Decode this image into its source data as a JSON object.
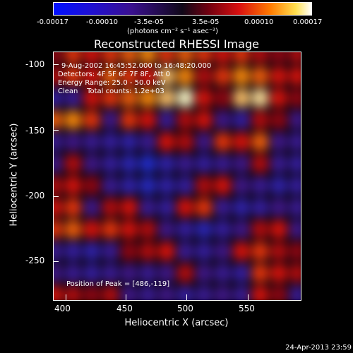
{
  "colorbar": {
    "ticks": [
      "-0.00017",
      "-0.00010",
      "-3.5e-05",
      "3.5e-05",
      "0.00010",
      "0.00017"
    ],
    "units": "(photons cm⁻² s⁻¹ asec⁻²)"
  },
  "title": "Reconstructed RHESSI Image",
  "annotations": {
    "time": "9-Aug-2002 16:45:52.000 to 16:48:20.000",
    "detectors": "Detectors: 4F 5F 6F 7F 8F, Att 0",
    "energy": "Energy Range: 25.0 - 50.0 keV",
    "clean": "Clean    Total counts: 1.2e+03",
    "peak": "Position of Peak = [486,-119]"
  },
  "footer": "24-Apr-2013 23:59",
  "chart_data": {
    "type": "heatmap",
    "title": "Reconstructed RHESSI Image",
    "xlabel": "Heliocentric X (arcsec)",
    "ylabel": "Heliocentric Y (arcsec)",
    "xlim": [
      390,
      585
    ],
    "ylim": [
      -280,
      -88
    ],
    "xticks": [
      400,
      450,
      500,
      550
    ],
    "yticks": [
      -100,
      -150,
      -200,
      -250
    ],
    "colorbar_range": [
      -0.00017,
      0.00017
    ],
    "peak": [
      486,
      -119
    ],
    "grid": {
      "x_start": 390,
      "x_step": 15,
      "y_start": -88,
      "y_step": 16,
      "values": [
        [
          0.3,
          0.6,
          0.5,
          0.6,
          0.7,
          0.8,
          0.6,
          0.7,
          0.6,
          0.5,
          0.6,
          0.4,
          0.3,
          0.4
        ],
        [
          0.4,
          0.6,
          0.5,
          0.7,
          0.6,
          0.5,
          0.9,
          0.8,
          0.4,
          0.6,
          0.8,
          0.7,
          0.5,
          0.5
        ],
        [
          -0.5,
          -0.4,
          0.5,
          0.6,
          0.7,
          0.8,
          0.9,
          1.0,
          0.5,
          0.3,
          0.9,
          0.95,
          0.5,
          0.3
        ],
        [
          0.7,
          0.8,
          0.6,
          -0.3,
          0.6,
          0.5,
          -0.4,
          0.4,
          0.5,
          -0.3,
          -0.5,
          0.4,
          0.3,
          -0.3
        ],
        [
          -0.4,
          -0.3,
          -0.4,
          -0.5,
          -0.6,
          -0.4,
          0.5,
          0.4,
          -0.3,
          0.6,
          0.5,
          0.7,
          -0.3,
          -0.4
        ],
        [
          -0.3,
          0.4,
          -0.3,
          -0.5,
          -0.7,
          -0.9,
          -0.6,
          -0.4,
          -0.5,
          -0.4,
          -0.3,
          0.4,
          -0.4,
          -0.5
        ],
        [
          0.4,
          0.5,
          0.3,
          -0.4,
          -0.6,
          -0.8,
          -0.6,
          -0.5,
          0.4,
          0.5,
          -0.3,
          -0.4,
          -0.6,
          -0.5
        ],
        [
          0.5,
          0.6,
          -0.3,
          0.4,
          0.5,
          -0.4,
          -0.5,
          0.5,
          0.6,
          -0.4,
          -0.6,
          -0.5,
          -0.3,
          -0.4
        ],
        [
          0.6,
          0.7,
          0.5,
          0.6,
          0.5,
          0.4,
          -0.3,
          -0.5,
          -0.7,
          -0.5,
          -0.3,
          0.4,
          0.5,
          -0.3
        ],
        [
          -0.4,
          -0.5,
          -0.6,
          -0.4,
          0.3,
          0.4,
          0.5,
          -0.4,
          -0.5,
          -0.3,
          0.5,
          0.6,
          0.4,
          0.3
        ],
        [
          -0.3,
          -0.4,
          -0.5,
          -0.4,
          -0.3,
          -0.4,
          -0.3,
          0.4,
          -0.3,
          -0.4,
          -0.5,
          0.6,
          0.5,
          0.4
        ],
        [
          0.5,
          0.4,
          0.3,
          0.4,
          -0.3,
          -0.4,
          -0.3,
          -0.5,
          -0.4,
          -0.3,
          -0.4,
          0.5,
          0.3,
          -0.4
        ]
      ]
    }
  }
}
